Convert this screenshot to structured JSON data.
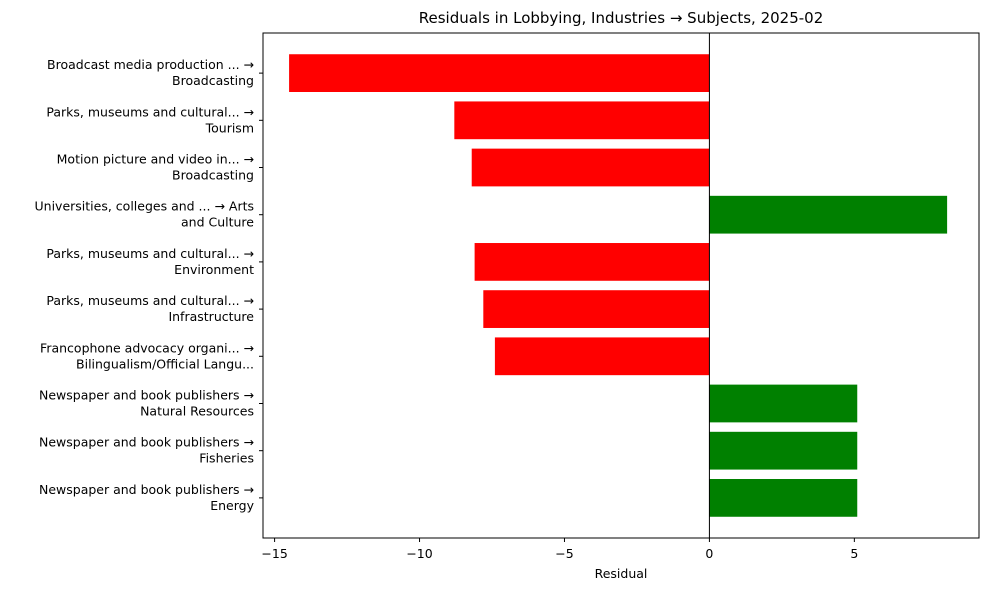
{
  "chart_data": {
    "type": "bar",
    "orientation": "horizontal",
    "title": "Residuals in Lobbying, Industries → Subjects, 2025-02",
    "xlabel": "Residual",
    "ylabel": "",
    "xlim": [
      -15.4,
      9.3
    ],
    "xticks": [
      -15,
      -10,
      -5,
      0,
      5
    ],
    "xtick_labels": [
      "−15",
      "−10",
      "−5",
      "0",
      "5"
    ],
    "grid": false,
    "positive_color": "#008000",
    "negative_color": "#ff0000",
    "categories": [
      [
        "Broadcast media production ... →",
        "Broadcasting"
      ],
      [
        "Parks, museums and cultural... →",
        "Tourism"
      ],
      [
        "Motion picture and video in... →",
        "Broadcasting"
      ],
      [
        "Universities, colleges and ... → Arts",
        "and Culture"
      ],
      [
        "Parks, museums and cultural... →",
        "Environment"
      ],
      [
        "Parks, museums and cultural... →",
        "Infrastructure"
      ],
      [
        "Francophone advocacy organi... →",
        "Bilingualism/Official Langu..."
      ],
      [
        "Newspaper and book publishers →",
        "Natural Resources"
      ],
      [
        "Newspaper and book publishers →",
        "Fisheries"
      ],
      [
        "Newspaper and book publishers →",
        "Energy"
      ]
    ],
    "values": [
      -14.5,
      -8.8,
      -8.2,
      8.2,
      -8.1,
      -7.8,
      -7.4,
      5.1,
      5.1,
      5.1
    ]
  }
}
